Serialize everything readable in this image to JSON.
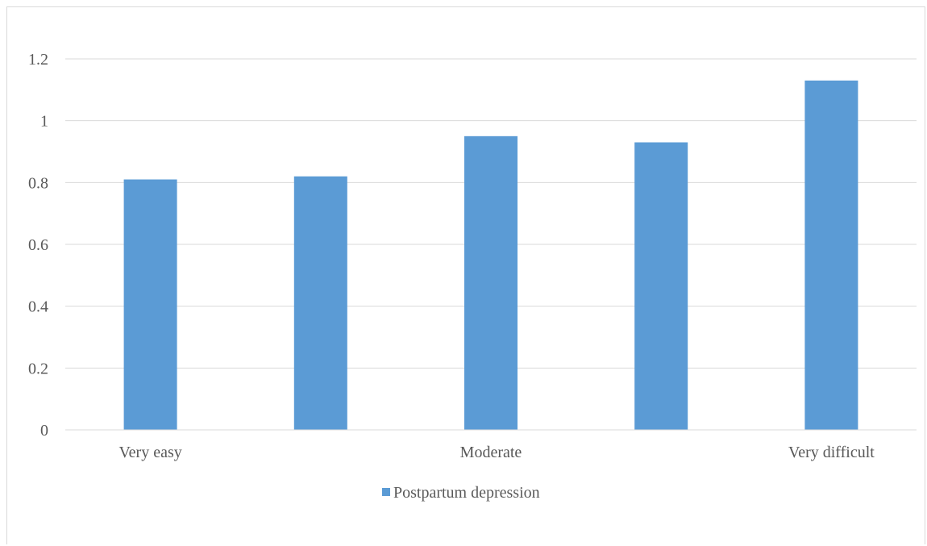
{
  "chart_data": {
    "type": "bar",
    "title": "",
    "xlabel": "",
    "ylabel": "",
    "categories": [
      "Very easy",
      "",
      "Moderate",
      "",
      "Very difficult"
    ],
    "series": [
      {
        "name": "Postpartum depression",
        "values": [
          0.81,
          0.82,
          0.95,
          0.93,
          1.13
        ],
        "color": "#5b9bd5"
      }
    ],
    "ylim": [
      0,
      1.2
    ],
    "yticks": [
      "0",
      "0.2",
      "0.4",
      "0.6",
      "0.8",
      "1",
      "1.2"
    ],
    "grid": true,
    "legend_position": "bottom"
  }
}
